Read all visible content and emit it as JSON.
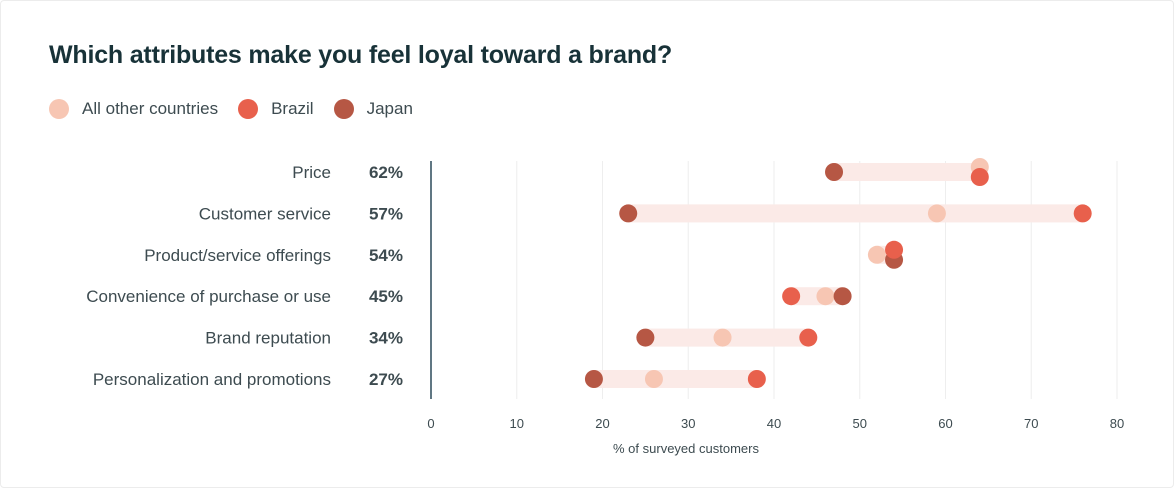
{
  "title": "Which attributes make you feel loyal toward a brand?",
  "colors": {
    "all_other": "#f7c6b3",
    "brazil": "#e8604c",
    "japan": "#b65744",
    "band": "#fbeae7",
    "axis": "#2c4a5a",
    "grid": "#eeeeee",
    "text": "#3d4b50",
    "title": "#183238"
  },
  "legend": [
    {
      "label": "All other countries",
      "color": "#f7c6b3"
    },
    {
      "label": "Brazil",
      "color": "#e8604c"
    },
    {
      "label": "Japan",
      "color": "#b65744"
    }
  ],
  "chart_data": {
    "type": "scatter",
    "subtype": "dot-range",
    "title": "Which attributes make you feel loyal toward a brand?",
    "xlabel": "% of surveyed customers",
    "xlim": [
      0,
      80
    ],
    "xticks": [
      0,
      10,
      20,
      30,
      40,
      50,
      60,
      70,
      80
    ],
    "grid": true,
    "legend_position": "top-left",
    "categories": [
      "Price",
      "Customer service",
      "Product/service offerings",
      "Convenience of purchase or use",
      "Brand reputation",
      "Personalization and promotions"
    ],
    "overall_percent": [
      "62%",
      "57%",
      "54%",
      "45%",
      "34%",
      "27%"
    ],
    "series": [
      {
        "name": "All other countries",
        "color": "#f7c6b3",
        "values": [
          64,
          59,
          52,
          46,
          34,
          26
        ]
      },
      {
        "name": "Brazil",
        "color": "#e8604c",
        "values": [
          64,
          76,
          54,
          42,
          44,
          38
        ]
      },
      {
        "name": "Japan",
        "color": "#b65744",
        "values": [
          47,
          23,
          54,
          48,
          25,
          19
        ]
      }
    ]
  }
}
